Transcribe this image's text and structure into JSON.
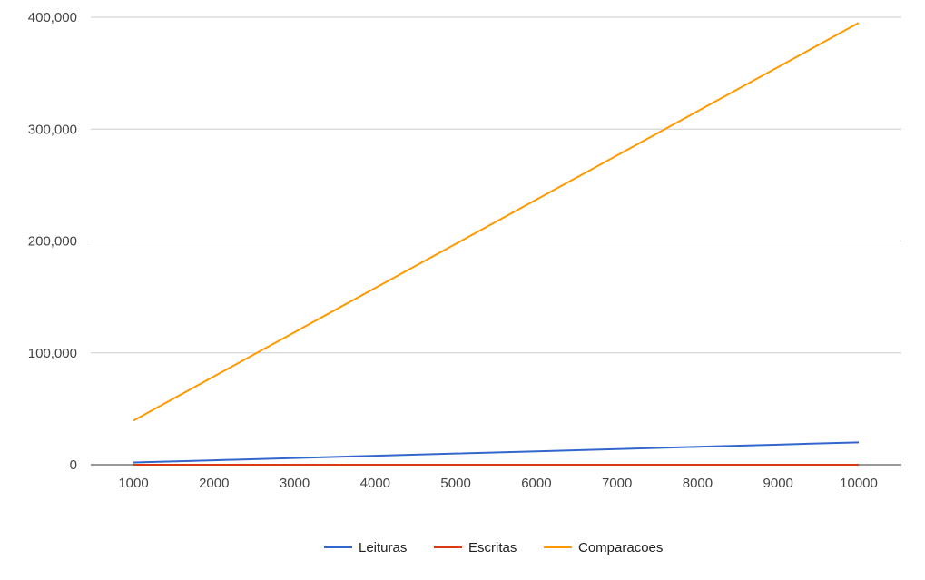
{
  "chart_data": {
    "type": "line",
    "title": "",
    "xlabel": "",
    "ylabel": "",
    "categories": [
      "1000",
      "2000",
      "3000",
      "4000",
      "5000",
      "6000",
      "7000",
      "8000",
      "9000",
      "10000"
    ],
    "ylim": [
      0,
      400000
    ],
    "y_ticks": [
      0,
      100000,
      200000,
      300000,
      400000
    ],
    "y_tick_labels": [
      "0",
      "100,000",
      "200,000",
      "300,000",
      "400,000"
    ],
    "grid": true,
    "legend_position": "bottom",
    "series": [
      {
        "name": "Leituras",
        "color": "#3366cc",
        "values": [
          2000,
          4000,
          6000,
          8000,
          10000,
          12000,
          14000,
          16000,
          18000,
          20000
        ]
      },
      {
        "name": "Escritas",
        "color": "#dc3912",
        "values": [
          0,
          0,
          0,
          0,
          0,
          0,
          0,
          0,
          0,
          0
        ]
      },
      {
        "name": "Comparacoes",
        "color": "#ff9900",
        "values": [
          39500,
          79000,
          118500,
          158000,
          197500,
          237000,
          276500,
          316000,
          355500,
          395000
        ]
      }
    ]
  }
}
